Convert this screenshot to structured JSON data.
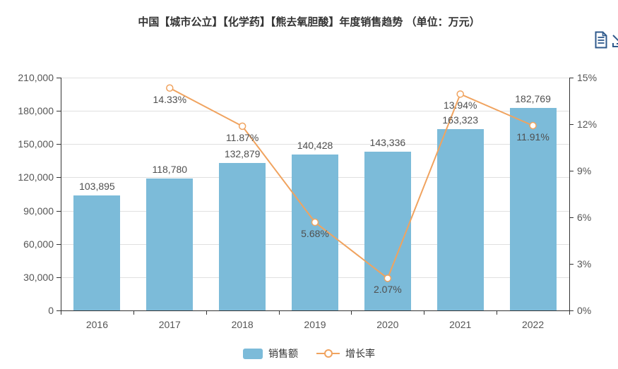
{
  "title": "中国【城市公立】【化学药】【熊去氧胆酸】年度销售趋势 （单位：万元）",
  "toolbox": {
    "icons": [
      {
        "name": "data-view"
      },
      {
        "name": "save-as-image"
      }
    ]
  },
  "colors": {
    "bar": "#7cbbd9",
    "line": "#f0a35f",
    "marker_fill": "#ffffff",
    "axis_line": "#333333",
    "grid_line": "#e0e0e0",
    "axis_text": "#555555",
    "value_text": "#4f4f4f",
    "title_text": "#333333",
    "toolbox_icon": "#2f5a8c"
  },
  "legend": {
    "items": [
      {
        "label": "销售额",
        "type": "bar"
      },
      {
        "label": "增长率",
        "type": "line"
      }
    ]
  },
  "chart_data": {
    "type": "bar+line",
    "categories": [
      "2016",
      "2017",
      "2018",
      "2019",
      "2020",
      "2021",
      "2022"
    ],
    "series": [
      {
        "name": "销售额",
        "type": "bar",
        "axis": "left",
        "values": [
          103895,
          118780,
          132879,
          140428,
          143336,
          163323,
          182769
        ],
        "labels": [
          "103,895",
          "118,780",
          "132,879",
          "140,428",
          "143,336",
          "163,323",
          "182,769"
        ]
      },
      {
        "name": "增长率",
        "type": "line",
        "axis": "right",
        "values": [
          null,
          14.33,
          11.87,
          5.68,
          2.07,
          13.94,
          11.91
        ],
        "labels": [
          null,
          "14.33%",
          "11.87%",
          "5.68%",
          "2.07%",
          "13.94%",
          "11.91%"
        ]
      }
    ],
    "left_axis": {
      "min": 0,
      "max": 210000,
      "tick_step": 30000,
      "tick_labels": [
        "0",
        "30,000",
        "60,000",
        "90,000",
        "120,000",
        "150,000",
        "180,000",
        "210,000"
      ]
    },
    "right_axis": {
      "min": 0,
      "max": 15,
      "tick_step": 3,
      "tick_labels": [
        "0%",
        "3%",
        "6%",
        "9%",
        "12%",
        "15%"
      ]
    },
    "grid": true,
    "legend_position": "bottom"
  }
}
